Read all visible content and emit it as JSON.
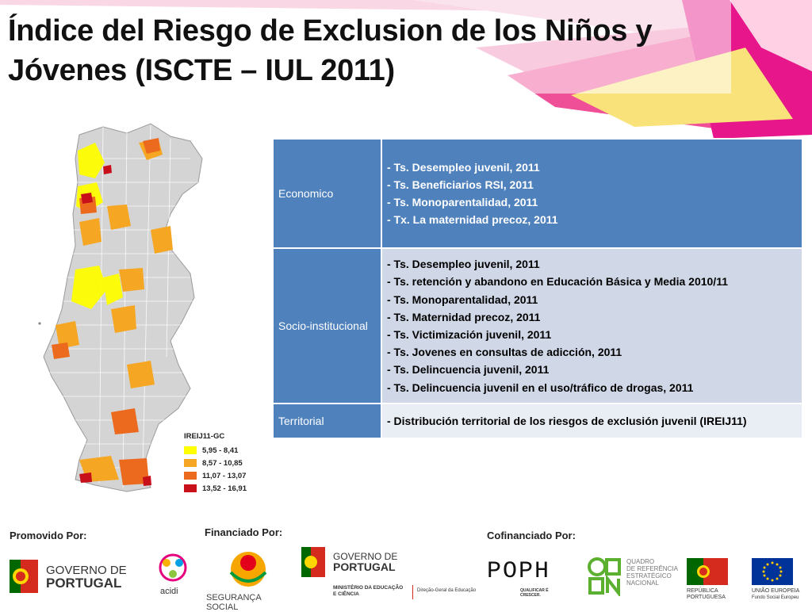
{
  "title": "Índice del Riesgo de Exclusion de los Niños y Jóvenes (ISCTE – IUL 2011)",
  "legend": {
    "title": "IREIJ11-GC",
    "entries": [
      {
        "label": "5,95 - 8,41",
        "color": "#ffff00"
      },
      {
        "label": "8,57 - 10,85",
        "color": "#f5a623"
      },
      {
        "label": "11,07 - 13,07",
        "color": "#ec6a1e"
      },
      {
        "label": "13,52 - 16,91",
        "color": "#c8101a"
      }
    ]
  },
  "table": {
    "rows": [
      {
        "category": "Economico",
        "items": [
          "- Ts. Desempleo juvenil, 2011",
          "- Ts. Beneficiarios RSI, 2011",
          "- Ts. Monoparentalidad, 2011",
          "- Tx. La maternidad precoz, 2011"
        ]
      },
      {
        "category": "Socio-institucional",
        "items": [
          "- Ts. Desempleo juvenil, 2011",
          "- Ts. retención y abandono en Educación Básica y Media 2010/11",
          "- Ts. Monoparentalidad, 2011",
          "- Ts. Maternidad precoz, 2011",
          "- Ts. Victimización juvenil, 2011",
          "- Ts. Jovenes en consultas de adicción, 2011",
          "- Ts. Delincuencia juvenil, 2011",
          "- Ts. Delincuencia juvenil en el uso/tráfico de drogas, 2011"
        ]
      },
      {
        "category": "Territorial",
        "items": [
          "- Distribución territorial de los riesgos de exclusión juvenil  (IREIJ11)"
        ]
      }
    ]
  },
  "footer": {
    "promovido": "Promovido Por:",
    "financiado": "Financiado Por:",
    "cofinanciado": "Cofinanciado Por:",
    "logos": {
      "gov1": [
        "GOVERNO DE",
        "PORTUGAL"
      ],
      "acidi": "acidi",
      "seg": "SEGURANÇA SOCIAL",
      "gov2": [
        "GOVERNO DE",
        "PORTUGAL"
      ],
      "ministerio": [
        "MINISTÉRIO DA EDUCAÇÃO",
        "E CIÊNCIA"
      ],
      "dge": "Direção-Geral da Educação",
      "poph": "POPH",
      "poph_sub": "QUALIFICAR É CRESCER.",
      "qren": [
        "QUADRO",
        "DE REFERÊNCIA",
        "ESTRATÉGICO",
        "NACIONAL"
      ],
      "republica": [
        "REPÚBLICA",
        "PORTUGUESA"
      ],
      "ue": [
        "UNIÃO EUROPEIA",
        "Fundo Social Europeu"
      ]
    }
  },
  "colors": {
    "table_blue": "#4f81bd",
    "table_light": "#d0d8e8",
    "table_lighter": "#e9edf4",
    "map_gray": "#d4d4d4"
  }
}
